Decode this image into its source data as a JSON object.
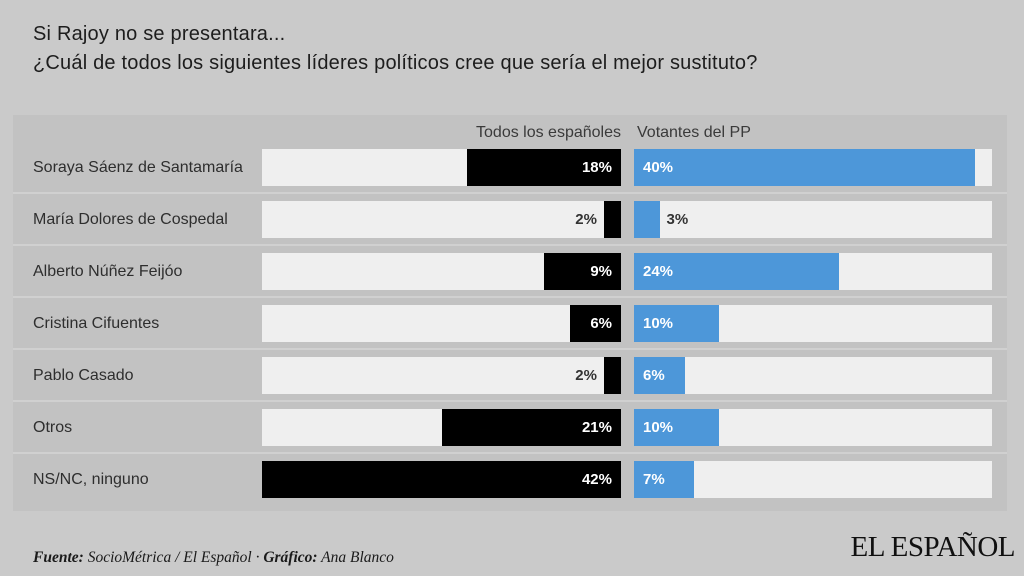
{
  "title": {
    "line1": "Si Rajoy no se presentara...",
    "line2": "¿Cuál de todos los siguientes líderes políticos cree que sería el mejor sustituto?"
  },
  "columns": [
    {
      "label": "Todos los españoles"
    },
    {
      "label": "Votantes del PP"
    }
  ],
  "chart_data": {
    "type": "bar",
    "orientation": "horizontal",
    "unit": "%",
    "xmax": 42,
    "categories": [
      "Soraya Sáenz de Santamaría",
      "María Dolores de Cospedal",
      "Alberto Núñez Feijóo",
      "Cristina Cifuentes",
      "Pablo Casado",
      "Otros",
      "NS/NC, ninguno"
    ],
    "series": [
      {
        "name": "Todos los españoles",
        "color": "#000000",
        "bar_alignment": "right",
        "values": [
          18,
          2,
          9,
          6,
          2,
          21,
          42
        ],
        "labels": [
          "18%",
          "2%",
          "9%",
          "6%",
          "2%",
          "21%",
          "42%"
        ]
      },
      {
        "name": "Votantes del PP",
        "color": "#4d97d9",
        "bar_alignment": "left",
        "values": [
          40,
          3,
          24,
          10,
          6,
          10,
          7
        ],
        "labels": [
          "40%",
          "3%",
          "24%",
          "10%",
          "6%",
          "10%",
          "7%"
        ]
      }
    ]
  },
  "footer": {
    "fuente_label": "Fuente:",
    "fuente_text": " SocioMétrica / El Español · ",
    "grafico_label": "Gráfico:",
    "grafico_text": " Ana Blanco"
  },
  "logo": "EL ESPAÑOL",
  "colors": {
    "page_bg": "#cacaca",
    "panel_bg": "#c2c2c2",
    "track_bg": "#efefef",
    "bar_black": "#000000",
    "bar_blue": "#4d97d9",
    "divider": "#d0d0d0"
  }
}
